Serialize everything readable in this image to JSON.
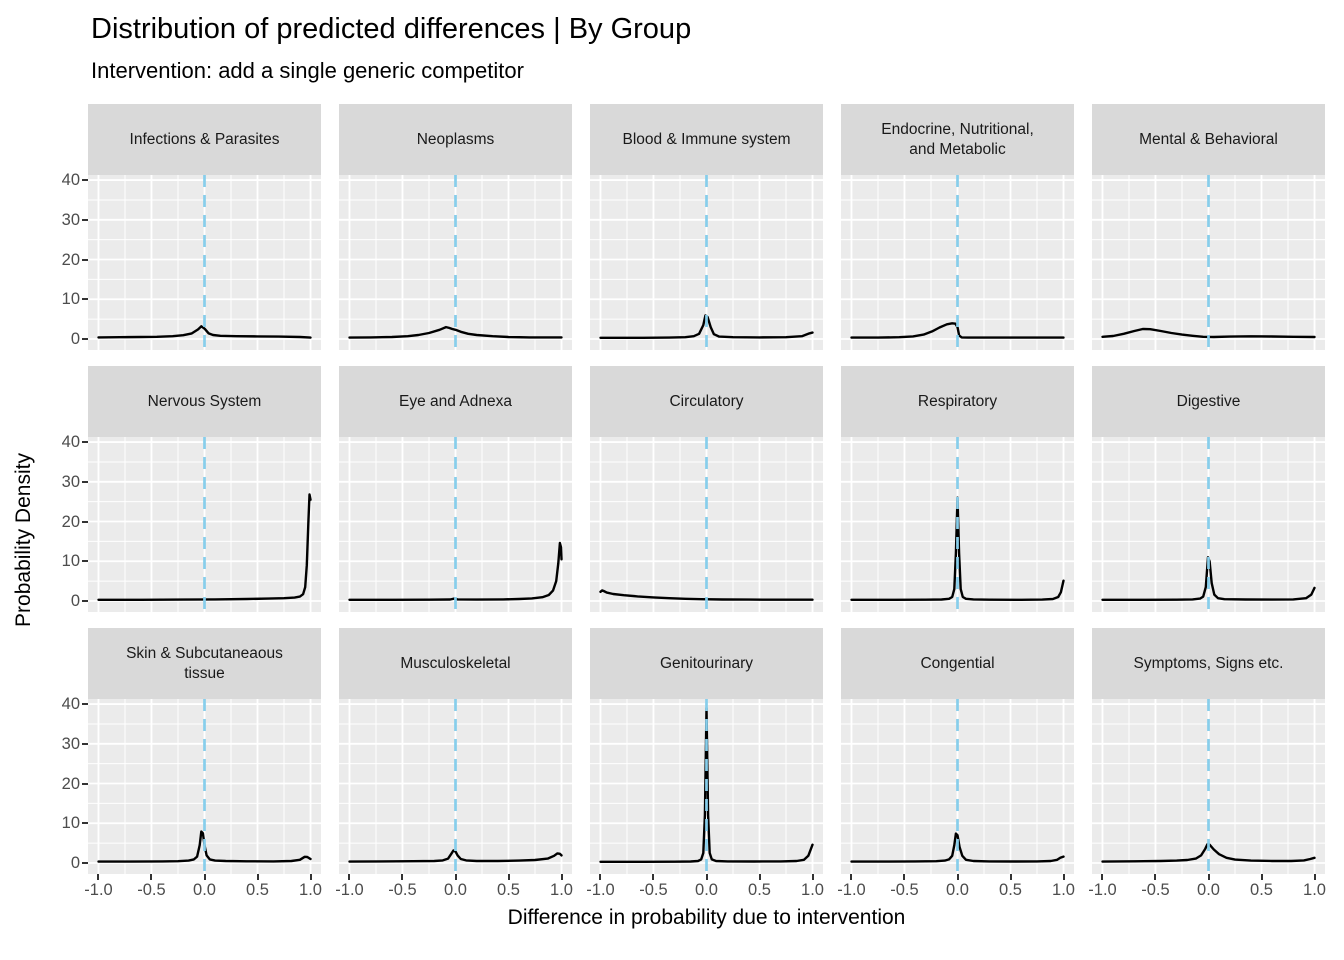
{
  "colors": {
    "panel_bg": "#EBEBEB",
    "strip_bg": "#D9D9D9",
    "gridline": "#FFFFFF",
    "curve": "#000000",
    "vline": "#87CEEB",
    "tick_label": "#4D4D4D",
    "strip_text": "#1A1A1A"
  },
  "chart_data": {
    "type": "line",
    "title": "Distribution of predicted differences | By Group",
    "subtitle": "Intervention: add a single generic competitor",
    "xlabel": "Difference in probability due to intervention",
    "ylabel": "Probability Density",
    "xlim": [
      -1,
      1
    ],
    "ylim": [
      0,
      40
    ],
    "x_tick_values": [
      -1,
      -0.5,
      0,
      0.5,
      1
    ],
    "x_tick_labels": [
      "-1.0",
      "-0.5",
      "0.0",
      "0.5",
      "1.0"
    ],
    "x_minor": [
      -0.75,
      -0.25,
      0.25,
      0.75
    ],
    "y_tick_values": [
      0,
      10,
      20,
      30,
      40
    ],
    "y_tick_labels": [
      "0",
      "10",
      "20",
      "30",
      "40"
    ],
    "y_minor": [
      5,
      15,
      25,
      35
    ],
    "grid": "on",
    "legend": "none",
    "vline_x": 0,
    "vline_style": "dashed",
    "facet_layout": {
      "rows": 3,
      "cols": 5
    },
    "facets": [
      {
        "label": "Infections & Parasites",
        "points": [
          [
            -1,
            0.4
          ],
          [
            -0.8,
            0.45
          ],
          [
            -0.6,
            0.5
          ],
          [
            -0.45,
            0.55
          ],
          [
            -0.3,
            0.7
          ],
          [
            -0.2,
            0.95
          ],
          [
            -0.12,
            1.4
          ],
          [
            -0.06,
            2.4
          ],
          [
            -0.03,
            3.2
          ],
          [
            0,
            2.6
          ],
          [
            0.04,
            1.4
          ],
          [
            0.08,
            1.0
          ],
          [
            0.15,
            0.8
          ],
          [
            0.3,
            0.7
          ],
          [
            0.5,
            0.65
          ],
          [
            0.7,
            0.6
          ],
          [
            0.9,
            0.5
          ],
          [
            1,
            0.35
          ]
        ]
      },
      {
        "label": "Neoplasms",
        "points": [
          [
            -1,
            0.35
          ],
          [
            -0.8,
            0.4
          ],
          [
            -0.6,
            0.5
          ],
          [
            -0.45,
            0.7
          ],
          [
            -0.35,
            1.0
          ],
          [
            -0.25,
            1.5
          ],
          [
            -0.15,
            2.3
          ],
          [
            -0.09,
            3.0
          ],
          [
            -0.06,
            2.8
          ],
          [
            -0.03,
            2.5
          ],
          [
            0,
            2.3
          ],
          [
            0.05,
            1.8
          ],
          [
            0.12,
            1.3
          ],
          [
            0.2,
            1.0
          ],
          [
            0.35,
            0.7
          ],
          [
            0.5,
            0.5
          ],
          [
            0.7,
            0.4
          ],
          [
            1,
            0.4
          ]
        ]
      },
      {
        "label": "Blood & Immune system",
        "points": [
          [
            -1,
            0.3
          ],
          [
            -0.6,
            0.3
          ],
          [
            -0.35,
            0.35
          ],
          [
            -0.2,
            0.45
          ],
          [
            -0.12,
            0.7
          ],
          [
            -0.07,
            1.3
          ],
          [
            -0.03,
            3.5
          ],
          [
            -0.01,
            5.9
          ],
          [
            0.01,
            5.5
          ],
          [
            0.04,
            3.0
          ],
          [
            0.07,
            1.2
          ],
          [
            0.12,
            0.6
          ],
          [
            0.25,
            0.45
          ],
          [
            0.5,
            0.4
          ],
          [
            0.75,
            0.45
          ],
          [
            0.9,
            0.7
          ],
          [
            0.97,
            1.4
          ],
          [
            1,
            1.6
          ]
        ]
      },
      {
        "label": "Endocrine, Nutritional,\nand Metabolic",
        "points": [
          [
            -1,
            0.35
          ],
          [
            -0.75,
            0.35
          ],
          [
            -0.55,
            0.45
          ],
          [
            -0.42,
            0.65
          ],
          [
            -0.32,
            1.1
          ],
          [
            -0.24,
            1.9
          ],
          [
            -0.17,
            2.9
          ],
          [
            -0.1,
            3.7
          ],
          [
            -0.05,
            3.95
          ],
          [
            -0.02,
            3.85
          ],
          [
            0,
            3.0
          ],
          [
            0.015,
            0.9
          ],
          [
            0.04,
            0.4
          ],
          [
            0.1,
            0.35
          ],
          [
            0.4,
            0.35
          ],
          [
            0.7,
            0.35
          ],
          [
            1,
            0.35
          ]
        ]
      },
      {
        "label": "Mental & Behavioral",
        "points": [
          [
            -1,
            0.55
          ],
          [
            -0.9,
            0.75
          ],
          [
            -0.8,
            1.3
          ],
          [
            -0.7,
            2.0
          ],
          [
            -0.62,
            2.5
          ],
          [
            -0.55,
            2.45
          ],
          [
            -0.45,
            2.0
          ],
          [
            -0.35,
            1.5
          ],
          [
            -0.25,
            1.1
          ],
          [
            -0.15,
            0.8
          ],
          [
            -0.05,
            0.55
          ],
          [
            0.05,
            0.5
          ],
          [
            0.2,
            0.6
          ],
          [
            0.4,
            0.68
          ],
          [
            0.6,
            0.62
          ],
          [
            0.8,
            0.55
          ],
          [
            1,
            0.5
          ]
        ]
      },
      {
        "label": "Nervous System",
        "points": [
          [
            -1,
            0.3
          ],
          [
            -0.6,
            0.3
          ],
          [
            -0.2,
            0.35
          ],
          [
            0.1,
            0.4
          ],
          [
            0.4,
            0.5
          ],
          [
            0.6,
            0.6
          ],
          [
            0.75,
            0.7
          ],
          [
            0.85,
            0.85
          ],
          [
            0.9,
            1.1
          ],
          [
            0.93,
            1.7
          ],
          [
            0.95,
            3.5
          ],
          [
            0.965,
            9
          ],
          [
            0.98,
            20
          ],
          [
            0.99,
            26.8
          ],
          [
            1,
            25.5
          ]
        ]
      },
      {
        "label": "Eye and Adnexa",
        "points": [
          [
            -1,
            0.3
          ],
          [
            -0.6,
            0.3
          ],
          [
            -0.25,
            0.32
          ],
          [
            -0.05,
            0.38
          ],
          [
            -0.01,
            0.6
          ],
          [
            0.02,
            0.4
          ],
          [
            0.2,
            0.35
          ],
          [
            0.45,
            0.4
          ],
          [
            0.6,
            0.5
          ],
          [
            0.72,
            0.65
          ],
          [
            0.82,
            0.95
          ],
          [
            0.88,
            1.5
          ],
          [
            0.92,
            2.6
          ],
          [
            0.95,
            5
          ],
          [
            0.97,
            9.5
          ],
          [
            0.985,
            14.6
          ],
          [
            0.995,
            13.5
          ],
          [
            1,
            10.5
          ]
        ]
      },
      {
        "label": "Circulatory",
        "points": [
          [
            -1,
            2.3
          ],
          [
            -0.985,
            2.65
          ],
          [
            -0.97,
            2.5
          ],
          [
            -0.94,
            2.1
          ],
          [
            -0.88,
            1.75
          ],
          [
            -0.78,
            1.45
          ],
          [
            -0.65,
            1.15
          ],
          [
            -0.5,
            0.9
          ],
          [
            -0.35,
            0.7
          ],
          [
            -0.2,
            0.55
          ],
          [
            -0.05,
            0.45
          ],
          [
            0.15,
            0.38
          ],
          [
            0.4,
            0.35
          ],
          [
            0.7,
            0.33
          ],
          [
            1,
            0.33
          ]
        ]
      },
      {
        "label": "Respiratory",
        "points": [
          [
            -1,
            0.3
          ],
          [
            -0.6,
            0.3
          ],
          [
            -0.3,
            0.32
          ],
          [
            -0.15,
            0.38
          ],
          [
            -0.08,
            0.55
          ],
          [
            -0.05,
            1.0
          ],
          [
            -0.03,
            3
          ],
          [
            -0.015,
            12
          ],
          [
            0,
            26
          ],
          [
            0.015,
            12
          ],
          [
            0.03,
            3
          ],
          [
            0.05,
            1.0
          ],
          [
            0.08,
            0.55
          ],
          [
            0.15,
            0.4
          ],
          [
            0.3,
            0.33
          ],
          [
            0.6,
            0.3
          ],
          [
            0.8,
            0.35
          ],
          [
            0.9,
            0.5
          ],
          [
            0.95,
            1.0
          ],
          [
            0.975,
            2.2
          ],
          [
            1,
            5.1
          ]
        ]
      },
      {
        "label": "Digestive",
        "points": [
          [
            -1,
            0.3
          ],
          [
            -0.6,
            0.3
          ],
          [
            -0.3,
            0.33
          ],
          [
            -0.15,
            0.4
          ],
          [
            -0.08,
            0.6
          ],
          [
            -0.05,
            1.1
          ],
          [
            -0.025,
            3.5
          ],
          [
            -0.005,
            11
          ],
          [
            0.01,
            10
          ],
          [
            0.03,
            4.5
          ],
          [
            0.055,
            1.6
          ],
          [
            0.09,
            0.7
          ],
          [
            0.15,
            0.45
          ],
          [
            0.35,
            0.38
          ],
          [
            0.6,
            0.35
          ],
          [
            0.8,
            0.4
          ],
          [
            0.92,
            0.7
          ],
          [
            0.97,
            1.6
          ],
          [
            1,
            3.3
          ]
        ]
      },
      {
        "label": "Skin & Subcutaneaous\ntissue",
        "points": [
          [
            -1,
            0.35
          ],
          [
            -0.7,
            0.35
          ],
          [
            -0.4,
            0.4
          ],
          [
            -0.25,
            0.45
          ],
          [
            -0.15,
            0.6
          ],
          [
            -0.1,
            0.9
          ],
          [
            -0.07,
            1.6
          ],
          [
            -0.045,
            4.5
          ],
          [
            -0.03,
            7.9
          ],
          [
            -0.015,
            7.5
          ],
          [
            0,
            4.5
          ],
          [
            0.02,
            1.9
          ],
          [
            0.05,
            0.9
          ],
          [
            0.1,
            0.6
          ],
          [
            0.2,
            0.5
          ],
          [
            0.4,
            0.42
          ],
          [
            0.65,
            0.4
          ],
          [
            0.82,
            0.5
          ],
          [
            0.9,
            0.8
          ],
          [
            0.945,
            1.55
          ],
          [
            0.97,
            1.5
          ],
          [
            1,
            1.0
          ]
        ]
      },
      {
        "label": "Musculoskeletal",
        "points": [
          [
            -1,
            0.35
          ],
          [
            -0.7,
            0.4
          ],
          [
            -0.4,
            0.45
          ],
          [
            -0.2,
            0.5
          ],
          [
            -0.12,
            0.65
          ],
          [
            -0.07,
            1.1
          ],
          [
            -0.04,
            2.3
          ],
          [
            -0.02,
            3.15
          ],
          [
            0,
            2.9
          ],
          [
            0.02,
            1.9
          ],
          [
            0.05,
            1.0
          ],
          [
            0.1,
            0.65
          ],
          [
            0.2,
            0.5
          ],
          [
            0.4,
            0.5
          ],
          [
            0.6,
            0.6
          ],
          [
            0.75,
            0.75
          ],
          [
            0.87,
            1.1
          ],
          [
            0.93,
            1.8
          ],
          [
            0.96,
            2.4
          ],
          [
            0.985,
            2.3
          ],
          [
            1,
            1.9
          ]
        ]
      },
      {
        "label": "Genitourinary",
        "points": [
          [
            -1,
            0.3
          ],
          [
            -0.6,
            0.3
          ],
          [
            -0.3,
            0.32
          ],
          [
            -0.15,
            0.38
          ],
          [
            -0.08,
            0.5
          ],
          [
            -0.05,
            0.9
          ],
          [
            -0.03,
            2.5
          ],
          [
            -0.015,
            12
          ],
          [
            0,
            39
          ],
          [
            0.015,
            12
          ],
          [
            0.03,
            2.5
          ],
          [
            0.05,
            0.9
          ],
          [
            0.09,
            0.5
          ],
          [
            0.2,
            0.4
          ],
          [
            0.45,
            0.38
          ],
          [
            0.7,
            0.4
          ],
          [
            0.85,
            0.5
          ],
          [
            0.92,
            0.8
          ],
          [
            0.96,
            1.8
          ],
          [
            0.98,
            3.2
          ],
          [
            1,
            4.6
          ]
        ]
      },
      {
        "label": "Congential",
        "points": [
          [
            -1,
            0.35
          ],
          [
            -0.7,
            0.35
          ],
          [
            -0.4,
            0.4
          ],
          [
            -0.2,
            0.45
          ],
          [
            -0.12,
            0.6
          ],
          [
            -0.08,
            0.9
          ],
          [
            -0.05,
            1.8
          ],
          [
            -0.03,
            4.5
          ],
          [
            -0.015,
            7.4
          ],
          [
            0,
            7.0
          ],
          [
            0.02,
            4.0
          ],
          [
            0.045,
            1.8
          ],
          [
            0.08,
            0.8
          ],
          [
            0.15,
            0.5
          ],
          [
            0.3,
            0.4
          ],
          [
            0.55,
            0.38
          ],
          [
            0.75,
            0.4
          ],
          [
            0.88,
            0.5
          ],
          [
            0.94,
            0.8
          ],
          [
            0.97,
            1.3
          ],
          [
            1,
            1.6
          ]
        ]
      },
      {
        "label": "Symptoms, Signs etc.",
        "points": [
          [
            -1,
            0.35
          ],
          [
            -0.7,
            0.42
          ],
          [
            -0.45,
            0.5
          ],
          [
            -0.3,
            0.6
          ],
          [
            -0.2,
            0.75
          ],
          [
            -0.12,
            1.1
          ],
          [
            -0.07,
            1.9
          ],
          [
            -0.03,
            3.6
          ],
          [
            -0.01,
            4.7
          ],
          [
            0.01,
            4.6
          ],
          [
            0.05,
            3.4
          ],
          [
            0.1,
            2.2
          ],
          [
            0.17,
            1.3
          ],
          [
            0.25,
            0.85
          ],
          [
            0.4,
            0.6
          ],
          [
            0.6,
            0.5
          ],
          [
            0.78,
            0.5
          ],
          [
            0.9,
            0.65
          ],
          [
            0.96,
            1.0
          ],
          [
            1,
            1.3
          ]
        ]
      }
    ]
  }
}
